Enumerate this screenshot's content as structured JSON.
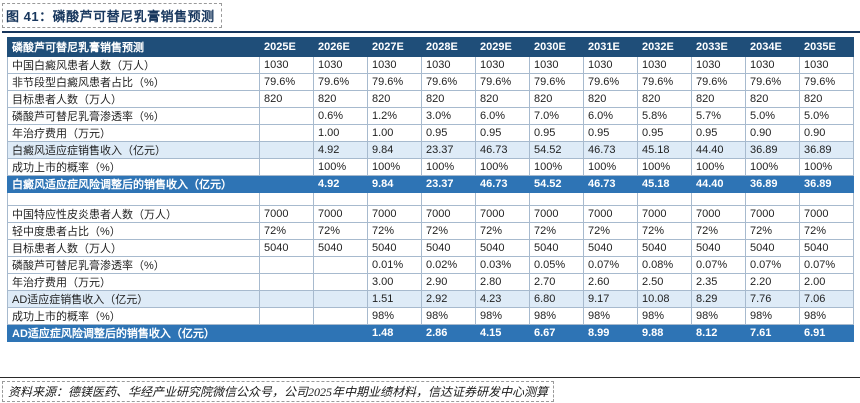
{
  "title": "图 41：磷酸芦可替尼乳膏销售预测",
  "source_note": "资料来源：德镁医药、华经产业研究院微信公众号，公司2025年中期业绩材料，信达证券研发中心测算",
  "colors": {
    "header_bg": "#1f4e79",
    "dark_row_bg": "#2e74b5",
    "light_row_bg": "#deebf7",
    "title_navy": "#17365d",
    "grid_border": "#a7bace"
  },
  "table": {
    "header_label": "磷酸芦可替尼乳膏销售预测",
    "years": [
      "2025E",
      "2026E",
      "2027E",
      "2028E",
      "2029E",
      "2030E",
      "2031E",
      "2032E",
      "2033E",
      "2034E",
      "2035E"
    ],
    "rows": [
      {
        "label": "中国白癜风患者人数（万人）",
        "style": "normal",
        "values": [
          "1030",
          "1030",
          "1030",
          "1030",
          "1030",
          "1030",
          "1030",
          "1030",
          "1030",
          "1030",
          "1030"
        ]
      },
      {
        "label": "非节段型白癜风患者占比（%）",
        "style": "normal",
        "values": [
          "79.6%",
          "79.6%",
          "79.6%",
          "79.6%",
          "79.6%",
          "79.6%",
          "79.6%",
          "79.6%",
          "79.6%",
          "79.6%",
          "79.6%"
        ]
      },
      {
        "label": "目标患者人数（万人）",
        "style": "normal",
        "values": [
          "820",
          "820",
          "820",
          "820",
          "820",
          "820",
          "820",
          "820",
          "820",
          "820",
          "820"
        ]
      },
      {
        "label": "磷酸芦可替尼乳膏渗透率（%）",
        "style": "normal",
        "values": [
          "",
          "0.6%",
          "1.2%",
          "3.0%",
          "6.0%",
          "7.0%",
          "6.0%",
          "5.8%",
          "5.7%",
          "5.0%",
          "5.0%"
        ]
      },
      {
        "label": "年治疗费用（万元）",
        "style": "normal",
        "values": [
          "",
          "1.00",
          "1.00",
          "0.95",
          "0.95",
          "0.95",
          "0.95",
          "0.95",
          "0.95",
          "0.90",
          "0.90"
        ]
      },
      {
        "label": "白癜风适应症销售收入（亿元）",
        "style": "light",
        "values": [
          "",
          "4.92",
          "9.84",
          "23.37",
          "46.73",
          "54.52",
          "46.73",
          "45.18",
          "44.40",
          "36.89",
          "36.89"
        ]
      },
      {
        "label": "成功上市的概率（%）",
        "style": "normal",
        "values": [
          "",
          "100%",
          "100%",
          "100%",
          "100%",
          "100%",
          "100%",
          "100%",
          "100%",
          "100%",
          "100%"
        ]
      },
      {
        "label": "白癜风适应症风险调整后的销售收入（亿元）",
        "style": "dark",
        "values": [
          "",
          "4.92",
          "9.84",
          "23.37",
          "46.73",
          "54.52",
          "46.73",
          "45.18",
          "44.40",
          "36.89",
          "36.89"
        ]
      },
      {
        "label": "",
        "style": "spacer",
        "values": [
          "",
          "",
          "",
          "",
          "",
          "",
          "",
          "",
          "",
          "",
          ""
        ]
      },
      {
        "label": "中国特应性皮炎患者人数（万人）",
        "style": "normal",
        "values": [
          "7000",
          "7000",
          "7000",
          "7000",
          "7000",
          "7000",
          "7000",
          "7000",
          "7000",
          "7000",
          "7000"
        ]
      },
      {
        "label": "轻中度患者占比（%）",
        "style": "normal",
        "values": [
          "72%",
          "72%",
          "72%",
          "72%",
          "72%",
          "72%",
          "72%",
          "72%",
          "72%",
          "72%",
          "72%"
        ]
      },
      {
        "label": "目标患者人数（万人）",
        "style": "normal",
        "values": [
          "5040",
          "5040",
          "5040",
          "5040",
          "5040",
          "5040",
          "5040",
          "5040",
          "5040",
          "5040",
          "5040"
        ]
      },
      {
        "label": "磷酸芦可替尼乳膏渗透率（%）",
        "style": "normal",
        "values": [
          "",
          "",
          "0.01%",
          "0.02%",
          "0.03%",
          "0.05%",
          "0.07%",
          "0.08%",
          "0.07%",
          "0.07%",
          "0.07%"
        ]
      },
      {
        "label": "年治疗费用（万元）",
        "style": "normal",
        "values": [
          "",
          "",
          "3.00",
          "2.90",
          "2.80",
          "2.70",
          "2.60",
          "2.50",
          "2.35",
          "2.20",
          "2.00"
        ]
      },
      {
        "label": "AD适应症销售收入（亿元）",
        "style": "light",
        "values": [
          "",
          "",
          "1.51",
          "2.92",
          "4.23",
          "6.80",
          "9.17",
          "10.08",
          "8.29",
          "7.76",
          "7.06"
        ]
      },
      {
        "label": "成功上市的概率（%）",
        "style": "normal",
        "values": [
          "",
          "",
          "98%",
          "98%",
          "98%",
          "98%",
          "98%",
          "98%",
          "98%",
          "98%",
          "98%"
        ]
      },
      {
        "label": "AD适应症风险调整后的销售收入（亿元）",
        "style": "dark",
        "values": [
          "",
          "",
          "1.48",
          "2.86",
          "4.15",
          "6.67",
          "8.99",
          "9.88",
          "8.12",
          "7.61",
          "6.91"
        ]
      }
    ]
  }
}
